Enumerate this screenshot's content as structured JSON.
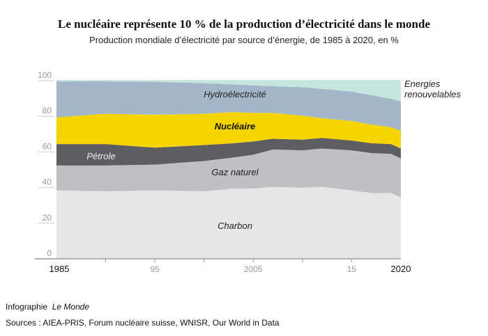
{
  "chart_data": {
    "type": "area",
    "stacked": true,
    "title": "Le nucléaire représente 10 % de la production d’électricité dans le monde",
    "subtitle": "Production mondiale d’électricité par source d’énergie, de 1985 à 2020, en %",
    "xlabel": "",
    "ylabel": "",
    "ylim": [
      0,
      100
    ],
    "xlim": [
      1985,
      2020
    ],
    "yticks": [
      "0",
      "20",
      "40",
      "60",
      "80",
      "100"
    ],
    "xticks": [
      {
        "year": 1985,
        "label": "1985",
        "bold": true
      },
      {
        "year": 1995,
        "label": "95"
      },
      {
        "year": 2005,
        "label": "2005"
      },
      {
        "year": 2015,
        "label": "15"
      },
      {
        "year": 2020,
        "label": "2020",
        "bold": true
      }
    ],
    "minor_ticks": [
      1990,
      2000,
      2010
    ],
    "x": [
      1985,
      1990,
      1995,
      2000,
      2003,
      2005,
      2007,
      2010,
      2012,
      2015,
      2017,
      2019,
      2020
    ],
    "series": [
      {
        "name": "Charbon",
        "color": "#e6e6e6",
        "values": [
          38,
          37.5,
          38,
          37.5,
          39,
          39,
          40,
          39.5,
          40,
          38,
          36.5,
          36.5,
          34
        ]
      },
      {
        "name": "Gaz naturel",
        "color": "#c0c0c2",
        "values": [
          14,
          14.5,
          14.5,
          17,
          17.5,
          19,
          21,
          21,
          21.5,
          22.5,
          22.5,
          22,
          22
        ]
      },
      {
        "name": "Pétrole",
        "color": "#5e5d61",
        "values": [
          12,
          12,
          9.5,
          9,
          8,
          7.5,
          6,
          6,
          6,
          5.5,
          5.5,
          5.5,
          5.5
        ]
      },
      {
        "name": "Nucléaire",
        "color": "#f5d400",
        "values": [
          15,
          17,
          18.5,
          17.5,
          17.5,
          16,
          14.5,
          13.5,
          11,
          11,
          10.5,
          9.5,
          10
        ]
      },
      {
        "name": "Hydroélectricité",
        "color": "#a3b7c8",
        "values": [
          20.3,
          18.2,
          18.5,
          17.2,
          15.5,
          15.5,
          15,
          16,
          16.5,
          16.5,
          16.5,
          16,
          16.5
        ]
      },
      {
        "name": "Energies renouvelables",
        "color": "#c5e6df",
        "values": [
          0.7,
          0.8,
          1,
          1.8,
          2.5,
          3,
          3.5,
          4,
          5,
          6.5,
          8.5,
          10.5,
          12
        ]
      }
    ],
    "legend": {
      "placement": "inline",
      "renew_line1": "Energies",
      "renew_line2": "renouvelables"
    }
  },
  "footer": {
    "credit_prefix": "Infographie",
    "credit_name": "Le Monde",
    "sources": "Sources : AIEA-PRIS, Forum nucléaire suisse, WNISR, Our World in Data"
  }
}
